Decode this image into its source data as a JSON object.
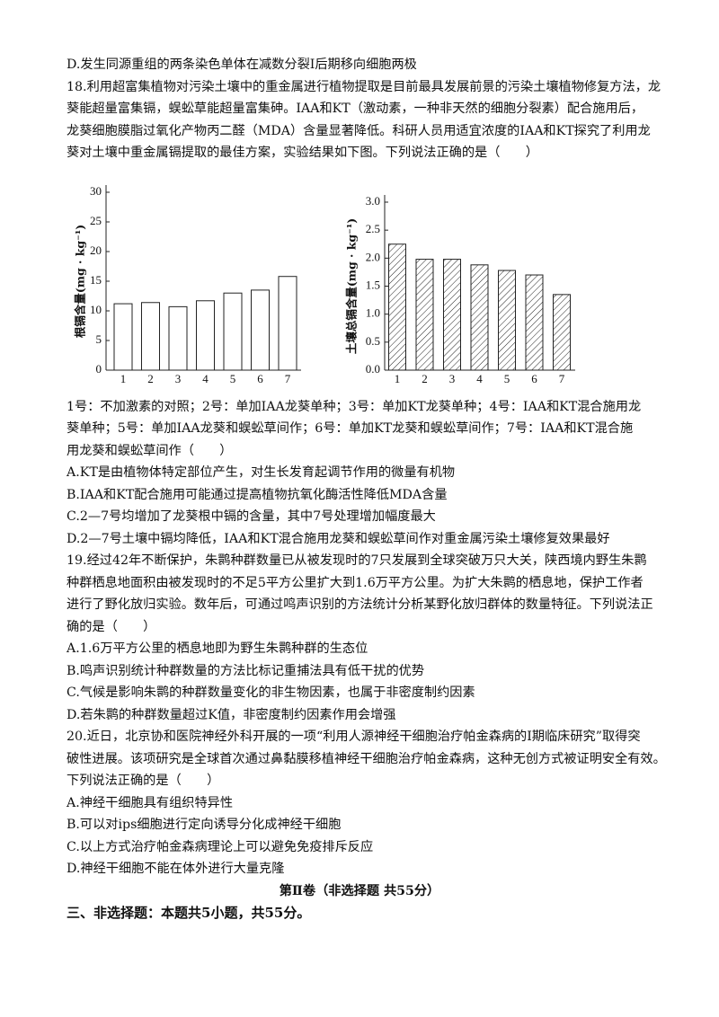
{
  "intro": [
    "D.发生同源重组的两条染色单体在减数分裂Ⅰ后期移向细胞两极"
  ],
  "q18": {
    "stem": [
      "18.利用超富集植物对污染土壤中的重金属进行植物提取是目前最具发展前景的污染土壤植物修复方法，龙",
      "葵能超量富集镉，蜈蚣草能超量富集砷。IAA和KT（激动素，一种非天然的细胞分裂素）配合施用后，",
      "龙葵细胞膜脂过氧化产物丙二醛（MDA）含量显著降低。科研人员用适宜浓度的IAA和KT探究了利用龙",
      "葵对土壤中重金属镉提取的最佳方案，实验结果如下图。下列说法正确的是（　　）"
    ],
    "caption": [
      "1号：不加激素的对照；2号：单加IAA龙葵单种；3号：单加KT龙葵单种；4号：IAA和KT混合施用龙",
      "葵单种；5号：单加IAA龙葵和蜈蚣草间作；6号：单加KT龙葵和蜈蚣草间作；7号：IAA和KT混合施",
      "用龙葵和蜈蚣草间作（　　）"
    ],
    "options": [
      "A.KT是由植物体特定部位产生，对生长发育起调节作用的微量有机物",
      "B.IAA和KT配合施用可能通过提高植物抗氧化酶活性降低MDA含量",
      "C.2—7号均增加了龙葵根中镉的含量，其中7号处理增加幅度最大",
      "D.2—7号土壤中镉均降低，IAA和KT混合施用龙葵和蜈蚣草间作对重金属污染土壤修复效果最好"
    ]
  },
  "chart_data": [
    {
      "type": "bar",
      "y_label": "根镉含量(mg · kg⁻¹)",
      "categories": [
        "1",
        "2",
        "3",
        "4",
        "5",
        "6",
        "7"
      ],
      "values": [
        11.2,
        11.4,
        10.7,
        11.7,
        13.0,
        13.5,
        15.8
      ],
      "color": "#ffffff",
      "ylim": [
        0,
        30
      ],
      "yticks": [
        0,
        5,
        10,
        15,
        20,
        25,
        30
      ]
    },
    {
      "type": "bar",
      "y_label": "土壤总镉含量(mg · kg⁻¹)",
      "categories": [
        "1",
        "2",
        "3",
        "4",
        "5",
        "6",
        "7"
      ],
      "values": [
        2.25,
        1.98,
        1.98,
        1.88,
        1.78,
        1.7,
        1.35
      ],
      "color": "#ffffff",
      "hatch": true,
      "ylim": [
        0,
        3.0
      ],
      "yticks": [
        {
          "value": 0,
          "label": "0.0"
        },
        0.5,
        {
          "value": 1,
          "label": "1.0"
        },
        1.5,
        {
          "value": 2,
          "label": "2.0"
        },
        2.5,
        {
          "value": 3,
          "label": "3.0"
        }
      ]
    }
  ],
  "rest": [
    "19.经过42年不断保护，朱鹮种群数量已从被发现时的7只发展到全球突破万只大关，陕西境内野生朱鹮",
    "种群栖息地面积由被发现时的不足5平方公里扩大到1.6万平方公里。为扩大朱鹮的栖息地，保护工作者",
    "进行了野化放归实验。数年后，可通过鸣声识别的方法统计分析某野化放归群体的数量特征。下列说法正",
    "确的是（　　）",
    "A.1.6万平方公里的栖息地即为野生朱鹮种群的生态位",
    "B.鸣声识别统计种群数量的方法比标记重捕法具有低干扰的优势",
    "C.气候是影响朱鹮的种群数量变化的非生物因素，也属于非密度制约因素",
    "D.若朱鹮的种群数量超过K值，非密度制约因素作用会增强",
    "20.近日，北京协和医院神经外科开展的一项“利用人源神经干细胞治疗帕金森病的Ⅰ期临床研究”取得突",
    "破性进展。该项研究是全球首次通过鼻黏膜移植神经干细胞治疗帕金森病，这种无创方式被证明安全有效。",
    "下列说法正确的是（　　）",
    "A.神经干细胞具有组织特异性",
    "B.可以对ips细胞进行定向诱导分化成神经干细胞",
    "C.以上方式治疗帕金森病理论上可以避免免疫排斥反应",
    "D.神经干细胞不能在体外进行大量克隆"
  ],
  "section_title": "第Ⅱ卷（非选择题 共55分）",
  "section_heading": "三、非选择题：本题共5小题，共55分。"
}
